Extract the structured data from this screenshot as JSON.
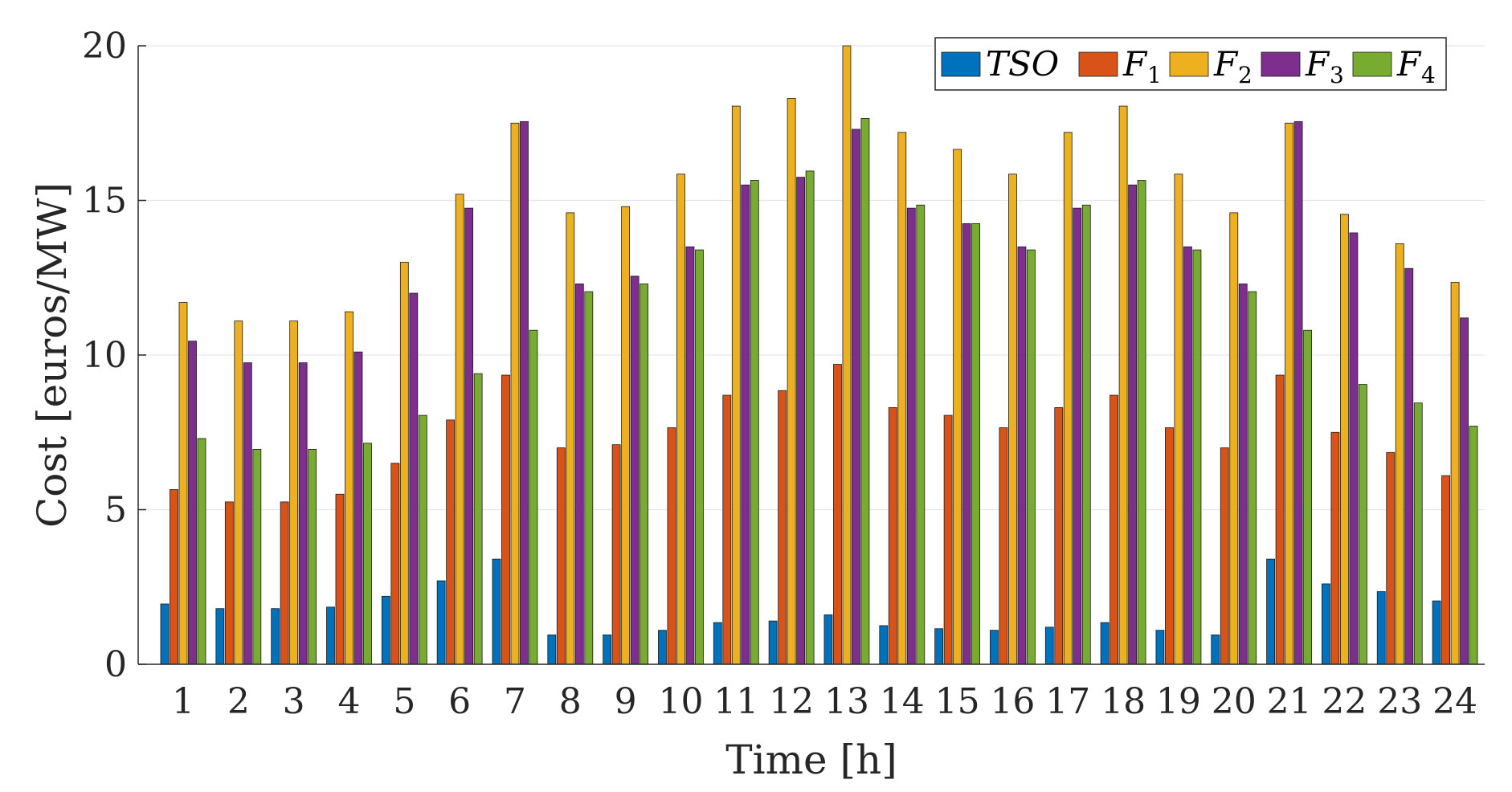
{
  "chart_data": {
    "type": "bar",
    "title": "",
    "xlabel": "Time [h]",
    "ylabel": "Cost [euros/MW]",
    "ylim": [
      0,
      20
    ],
    "yticks": [
      0,
      5,
      10,
      15,
      20
    ],
    "grid": "horizontal",
    "legend_position": "top-right",
    "categories": [
      "1",
      "2",
      "3",
      "4",
      "5",
      "6",
      "7",
      "8",
      "9",
      "10",
      "11",
      "12",
      "13",
      "14",
      "15",
      "16",
      "17",
      "18",
      "19",
      "20",
      "21",
      "22",
      "23",
      "24"
    ],
    "series": [
      {
        "name": "TSO",
        "sub": "",
        "color": "#0072BD",
        "values": [
          1.95,
          1.8,
          1.8,
          1.85,
          2.2,
          2.7,
          3.4,
          0.95,
          0.95,
          1.1,
          1.35,
          1.4,
          1.6,
          1.25,
          1.15,
          1.1,
          1.2,
          1.35,
          1.1,
          0.95,
          3.4,
          2.6,
          2.35,
          2.05
        ]
      },
      {
        "name": "F",
        "sub": "1",
        "color": "#D95319",
        "values": [
          5.65,
          5.25,
          5.25,
          5.5,
          6.5,
          7.9,
          9.35,
          7.0,
          7.1,
          7.65,
          8.7,
          8.85,
          9.7,
          8.3,
          8.05,
          7.65,
          8.3,
          8.7,
          7.65,
          7.0,
          9.35,
          7.5,
          6.85,
          6.1
        ]
      },
      {
        "name": "F",
        "sub": "2",
        "color": "#EDB120",
        "values": [
          11.7,
          11.1,
          11.1,
          11.4,
          13.0,
          15.2,
          17.5,
          14.6,
          14.8,
          15.85,
          18.05,
          18.3,
          20.0,
          17.2,
          16.65,
          15.85,
          17.2,
          18.05,
          15.85,
          14.6,
          17.5,
          14.55,
          13.6,
          12.35
        ]
      },
      {
        "name": "F",
        "sub": "3",
        "color": "#7E2F8E",
        "values": [
          10.45,
          9.75,
          9.75,
          10.1,
          12.0,
          14.75,
          17.55,
          12.3,
          12.55,
          13.5,
          15.5,
          15.75,
          17.3,
          14.75,
          14.25,
          13.5,
          14.75,
          15.5,
          13.5,
          12.3,
          17.55,
          13.95,
          12.8,
          11.2
        ]
      },
      {
        "name": "F",
        "sub": "4",
        "color": "#77AC30",
        "values": [
          7.3,
          6.95,
          6.95,
          7.15,
          8.05,
          9.4,
          10.8,
          12.05,
          12.3,
          13.4,
          15.65,
          15.95,
          17.65,
          14.85,
          14.25,
          13.4,
          14.85,
          15.65,
          13.4,
          12.05,
          10.8,
          9.05,
          8.45,
          7.7
        ]
      }
    ]
  }
}
